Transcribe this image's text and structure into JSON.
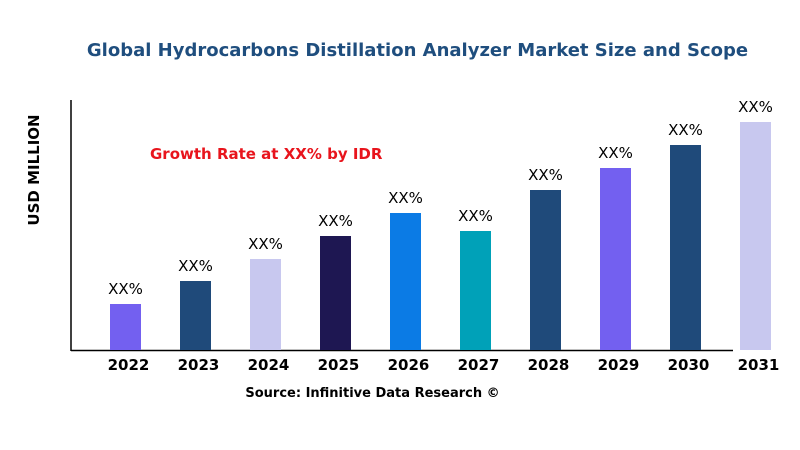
{
  "chart_data": {
    "type": "bar",
    "title": "Global Hydrocarbons Distillation Analyzer Market Size and Scope",
    "ylabel": "USD MILLION",
    "xlabel": "",
    "annotation": "Growth Rate at XX% by IDR",
    "source": "Source: Infinitive Data Research ©",
    "categories": [
      "2022",
      "2023",
      "2024",
      "2025",
      "2026",
      "2027",
      "2028",
      "2029",
      "2030",
      "2031"
    ],
    "values": [
      46,
      69,
      91,
      114,
      137,
      119,
      160,
      182,
      205,
      228
    ],
    "data_labels": [
      "XX%",
      "XX%",
      "XX%",
      "XX%",
      "XX%",
      "XX%",
      "XX%",
      "XX%",
      "XX%",
      "XX%"
    ],
    "colors": [
      "#7360f0",
      "#1f4a7a",
      "#c8c8ef",
      "#1e1752",
      "#0b7be5",
      "#00a1b8",
      "#1f4a7a",
      "#7360f0",
      "#1f4a7a",
      "#c8c8ef"
    ],
    "ylim": [
      0,
      250
    ],
    "grid": false,
    "legend": "none"
  }
}
